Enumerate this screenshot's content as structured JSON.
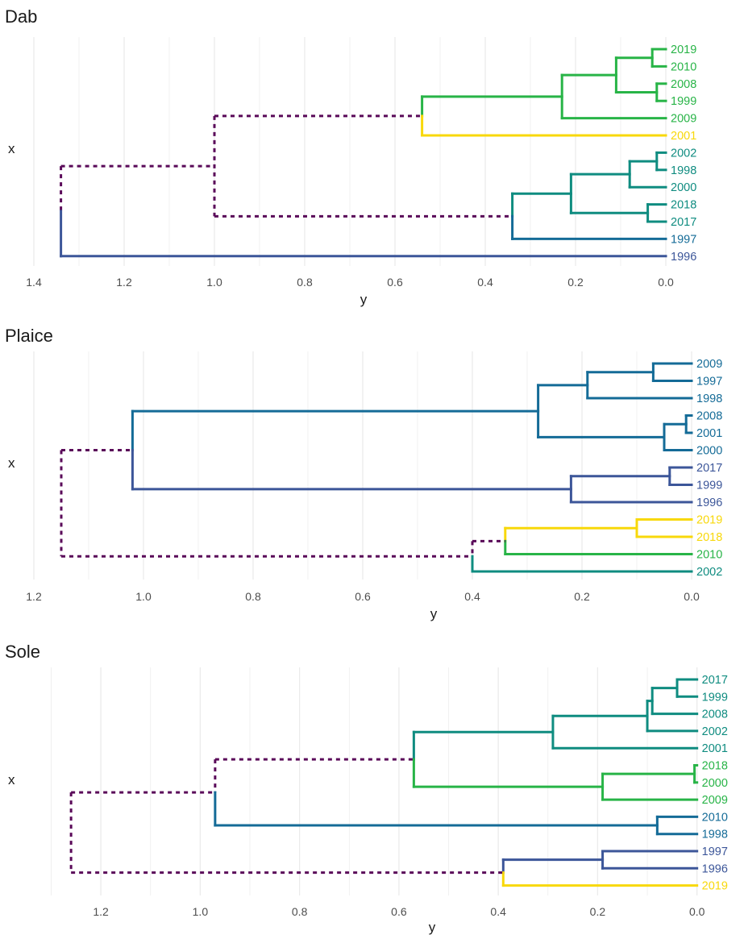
{
  "palette": {
    "purple": "#5a0a59",
    "indigo": "#3c5699",
    "blue": "#146b97",
    "teal": "#0f8c80",
    "green": "#28b447",
    "yellow": "#f8d80a",
    "grid": "#ebebeb",
    "axis_text": "#4d4d4d"
  },
  "chart_data": [
    {
      "type": "dendrogram",
      "title": "Dab",
      "xlabel": "y",
      "ylabel": "x",
      "xlim": [
        1.4,
        0.0
      ],
      "ticks": [
        1.4,
        1.2,
        1.0,
        0.8,
        0.6,
        0.4,
        0.2,
        0.0
      ],
      "grid": true,
      "leaves": [
        {
          "label": "2019",
          "color": "green"
        },
        {
          "label": "2010",
          "color": "green"
        },
        {
          "label": "2008",
          "color": "green"
        },
        {
          "label": "1999",
          "color": "green"
        },
        {
          "label": "2009",
          "color": "green"
        },
        {
          "label": "2001",
          "color": "yellow"
        },
        {
          "label": "2002",
          "color": "teal"
        },
        {
          "label": "1998",
          "color": "teal"
        },
        {
          "label": "2000",
          "color": "teal"
        },
        {
          "label": "2018",
          "color": "teal"
        },
        {
          "label": "2017",
          "color": "teal"
        },
        {
          "label": "1997",
          "color": "blue"
        },
        {
          "label": "1996",
          "color": "indigo"
        }
      ],
      "merges": [
        {
          "id": "a",
          "height": 0.03,
          "children": [
            "2019",
            "2010"
          ],
          "color": "green"
        },
        {
          "id": "b",
          "height": 0.02,
          "children": [
            "2008",
            "1999"
          ],
          "color": "green"
        },
        {
          "id": "c",
          "height": 0.11,
          "children": [
            "a",
            "b"
          ],
          "color": "green"
        },
        {
          "id": "d",
          "height": 0.23,
          "children": [
            "c",
            "2009"
          ],
          "color": "green"
        },
        {
          "id": "e",
          "height": 0.54,
          "children": [
            "d",
            "2001"
          ],
          "color": "green",
          "child_colors": [
            "green",
            "yellow"
          ]
        },
        {
          "id": "f",
          "height": 0.02,
          "children": [
            "2002",
            "1998"
          ],
          "color": "teal"
        },
        {
          "id": "g",
          "height": 0.08,
          "children": [
            "f",
            "2000"
          ],
          "color": "teal"
        },
        {
          "id": "h",
          "height": 0.04,
          "children": [
            "2018",
            "2017"
          ],
          "color": "teal"
        },
        {
          "id": "i",
          "height": 0.21,
          "children": [
            "g",
            "h"
          ],
          "color": "teal"
        },
        {
          "id": "j",
          "height": 0.34,
          "children": [
            "i",
            "1997"
          ],
          "color": "teal",
          "child_colors": [
            "teal",
            "blue"
          ]
        },
        {
          "id": "k",
          "height": 1.0,
          "children": [
            "e",
            "j"
          ],
          "color": "purple",
          "dashed": true
        },
        {
          "id": "l",
          "height": 1.34,
          "children": [
            "k",
            "1996"
          ],
          "color": "purple",
          "dashed": true,
          "child_colors": [
            "purple",
            "indigo"
          ]
        }
      ]
    },
    {
      "type": "dendrogram",
      "title": "Plaice",
      "xlabel": "y",
      "ylabel": "x",
      "xlim": [
        1.2,
        0.0
      ],
      "ticks": [
        1.2,
        1.0,
        0.8,
        0.6,
        0.4,
        0.2,
        0.0
      ],
      "grid": true,
      "leaves": [
        {
          "label": "2009",
          "color": "blue"
        },
        {
          "label": "1997",
          "color": "blue"
        },
        {
          "label": "1998",
          "color": "blue"
        },
        {
          "label": "2008",
          "color": "blue"
        },
        {
          "label": "2001",
          "color": "blue"
        },
        {
          "label": "2000",
          "color": "blue"
        },
        {
          "label": "2017",
          "color": "indigo"
        },
        {
          "label": "1999",
          "color": "indigo"
        },
        {
          "label": "1996",
          "color": "indigo"
        },
        {
          "label": "2019",
          "color": "yellow"
        },
        {
          "label": "2018",
          "color": "yellow"
        },
        {
          "label": "2010",
          "color": "green"
        },
        {
          "label": "2002",
          "color": "teal"
        }
      ],
      "merges": [
        {
          "id": "a",
          "height": 0.07,
          "children": [
            "2009",
            "1997"
          ],
          "color": "blue"
        },
        {
          "id": "b",
          "height": 0.19,
          "children": [
            "a",
            "1998"
          ],
          "color": "blue"
        },
        {
          "id": "c",
          "height": 0.01,
          "children": [
            "2008",
            "2001"
          ],
          "color": "blue"
        },
        {
          "id": "d",
          "height": 0.05,
          "children": [
            "c",
            "2000"
          ],
          "color": "blue"
        },
        {
          "id": "e",
          "height": 0.28,
          "children": [
            "b",
            "d"
          ],
          "color": "blue"
        },
        {
          "id": "f",
          "height": 0.04,
          "children": [
            "2017",
            "1999"
          ],
          "color": "indigo"
        },
        {
          "id": "g",
          "height": 0.22,
          "children": [
            "f",
            "1996"
          ],
          "color": "indigo"
        },
        {
          "id": "h",
          "height": 1.02,
          "children": [
            "e",
            "g"
          ],
          "color": "blue",
          "child_colors": [
            "blue",
            "indigo"
          ]
        },
        {
          "id": "i",
          "height": 0.1,
          "children": [
            "2019",
            "2018"
          ],
          "color": "yellow"
        },
        {
          "id": "j",
          "height": 0.34,
          "children": [
            "i",
            "2010"
          ],
          "color": "yellow",
          "child_colors": [
            "yellow",
            "green"
          ]
        },
        {
          "id": "k",
          "height": 0.4,
          "children": [
            "j",
            "2002"
          ],
          "color": "purple",
          "dashed": true,
          "child_colors": [
            "purple",
            "teal"
          ]
        },
        {
          "id": "l",
          "height": 1.15,
          "children": [
            "h",
            "k"
          ],
          "color": "purple",
          "dashed": true
        }
      ]
    },
    {
      "type": "dendrogram",
      "title": "Sole",
      "xlabel": "y",
      "ylabel": "x",
      "xlim": [
        1.33,
        -0.02
      ],
      "ticks": [
        1.2,
        1.0,
        0.8,
        0.6,
        0.4,
        0.2,
        0.0
      ],
      "grid": true,
      "leaves": [
        {
          "label": "2017",
          "color": "teal"
        },
        {
          "label": "1999",
          "color": "teal"
        },
        {
          "label": "2008",
          "color": "teal"
        },
        {
          "label": "2002",
          "color": "teal"
        },
        {
          "label": "2001",
          "color": "teal"
        },
        {
          "label": "2018",
          "color": "green"
        },
        {
          "label": "2000",
          "color": "green"
        },
        {
          "label": "2009",
          "color": "green"
        },
        {
          "label": "2010",
          "color": "blue"
        },
        {
          "label": "1998",
          "color": "blue"
        },
        {
          "label": "1997",
          "color": "indigo"
        },
        {
          "label": "1996",
          "color": "indigo"
        },
        {
          "label": "2019",
          "color": "yellow"
        }
      ],
      "merges": [
        {
          "id": "a",
          "height": 0.04,
          "children": [
            "2017",
            "1999"
          ],
          "color": "teal"
        },
        {
          "id": "b",
          "height": 0.09,
          "children": [
            "a",
            "2008"
          ],
          "color": "teal"
        },
        {
          "id": "c",
          "height": 0.1,
          "children": [
            "b",
            "2002"
          ],
          "color": "teal"
        },
        {
          "id": "d",
          "height": 0.29,
          "children": [
            "c",
            "2001"
          ],
          "color": "teal"
        },
        {
          "id": "e",
          "height": 0.005,
          "children": [
            "2018",
            "2000"
          ],
          "color": "green"
        },
        {
          "id": "f",
          "height": 0.19,
          "children": [
            "e",
            "2009"
          ],
          "color": "green"
        },
        {
          "id": "g",
          "height": 0.57,
          "children": [
            "d",
            "f"
          ],
          "color": "teal",
          "child_colors": [
            "teal",
            "green"
          ]
        },
        {
          "id": "h",
          "height": 0.08,
          "children": [
            "2010",
            "1998"
          ],
          "color": "blue"
        },
        {
          "id": "i",
          "height": 0.97,
          "children": [
            "g",
            "h"
          ],
          "color": "purple",
          "dashed": true,
          "child_colors": [
            "purple",
            "blue"
          ]
        },
        {
          "id": "j",
          "height": 0.19,
          "children": [
            "1997",
            "1996"
          ],
          "color": "indigo"
        },
        {
          "id": "k",
          "height": 0.39,
          "children": [
            "j",
            "2019"
          ],
          "color": "indigo",
          "child_colors": [
            "indigo",
            "yellow"
          ]
        },
        {
          "id": "l",
          "height": 1.26,
          "children": [
            "i",
            "k"
          ],
          "color": "purple",
          "dashed": true
        }
      ]
    }
  ]
}
